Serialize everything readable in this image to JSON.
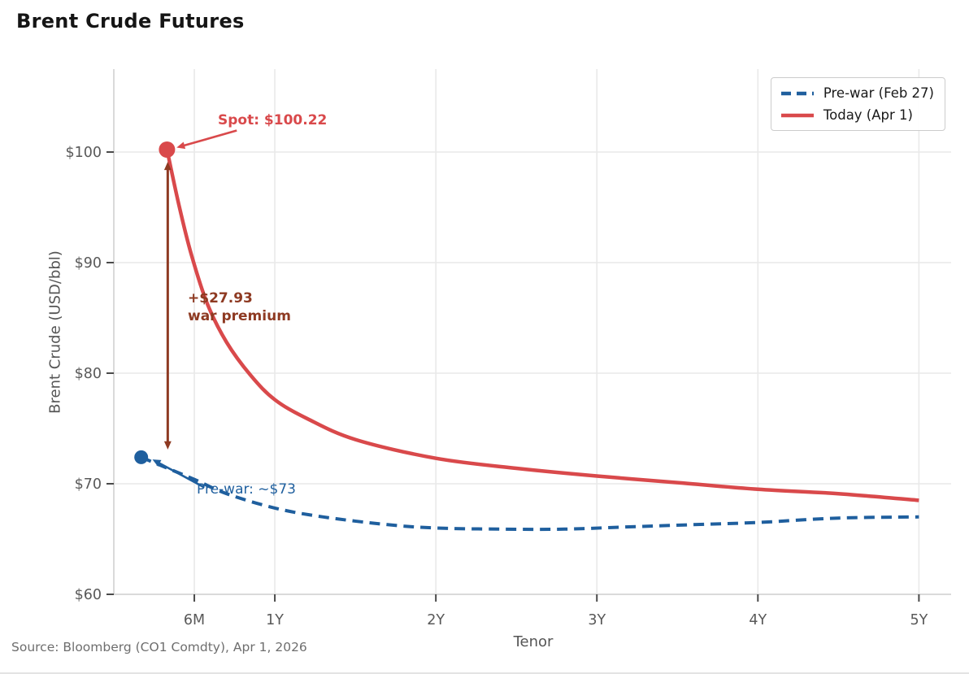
{
  "title": "Brent Crude Futures",
  "source_note": "Source: Bloomberg (CO1 Comdty), Apr 1, 2026",
  "chart_data": {
    "type": "line",
    "title": "Brent Crude Futures",
    "xlabel": "Tenor",
    "ylabel": "Brent Crude (USD/bbl)",
    "xlim": [
      0,
      5.2
    ],
    "ylim": [
      60,
      107.5
    ],
    "grid": true,
    "legend_position": "upper right",
    "x_ticks": [
      {
        "t": 0.5,
        "label": "6M"
      },
      {
        "t": 1.0,
        "label": "1Y"
      },
      {
        "t": 2.0,
        "label": "2Y"
      },
      {
        "t": 3.0,
        "label": "3Y"
      },
      {
        "t": 4.0,
        "label": "4Y"
      },
      {
        "t": 5.0,
        "label": "5Y"
      }
    ],
    "y_ticks": [
      {
        "v": 100,
        "label": "$100"
      },
      {
        "v": 90,
        "label": "$90"
      },
      {
        "v": 80,
        "label": "$80"
      },
      {
        "v": 70,
        "label": "$70"
      },
      {
        "v": 60,
        "label": "$60"
      }
    ],
    "series": [
      {
        "name": "Pre-war (Feb 27)",
        "color": "#1f5f9e",
        "style": "dashed",
        "dash": [
          13,
          8
        ],
        "width": 4,
        "start_marker": true,
        "marker_size": 8.5,
        "points": [
          [
            0.17,
            72.4
          ],
          [
            0.35,
            71.3
          ],
          [
            0.5,
            70.4
          ],
          [
            0.7,
            69.1
          ],
          [
            1.0,
            67.8
          ],
          [
            1.3,
            67.0
          ],
          [
            1.7,
            66.3
          ],
          [
            2.0,
            66.0
          ],
          [
            2.4,
            65.9
          ],
          [
            2.8,
            65.9
          ],
          [
            3.2,
            66.1
          ],
          [
            3.6,
            66.3
          ],
          [
            4.0,
            66.5
          ],
          [
            4.5,
            66.9
          ],
          [
            5.0,
            67.0
          ]
        ]
      },
      {
        "name": "Today (Apr 1)",
        "color": "#d9494b",
        "style": "solid",
        "width": 4.5,
        "start_marker": true,
        "marker_size": 10,
        "points": [
          [
            0.33,
            100.22
          ],
          [
            0.4,
            95.5
          ],
          [
            0.48,
            90.8
          ],
          [
            0.58,
            86.3
          ],
          [
            0.7,
            82.8
          ],
          [
            0.85,
            79.8
          ],
          [
            1.0,
            77.6
          ],
          [
            1.2,
            75.9
          ],
          [
            1.5,
            74.0
          ],
          [
            2.0,
            72.3
          ],
          [
            2.5,
            71.4
          ],
          [
            3.0,
            70.7
          ],
          [
            3.5,
            70.1
          ],
          [
            4.0,
            69.5
          ],
          [
            4.5,
            69.1
          ],
          [
            5.0,
            68.5
          ]
        ]
      }
    ],
    "annotations": [
      {
        "id": "spot",
        "text": "Spot: $100.22",
        "color": "#d9494b",
        "points_to": {
          "x": 0.39,
          "y": 100.4
        }
      },
      {
        "id": "war-premium",
        "lines": [
          "+$27.93",
          "war premium"
        ],
        "color": "#8e3a22",
        "at_x": 0.335,
        "from_y": 100.22,
        "to_y": 72.29
      },
      {
        "id": "prewar",
        "text": "Pre-war: ~$73",
        "color": "#1f5f9e",
        "points_to": {
          "x": 0.24,
          "y": 72.2
        }
      }
    ]
  }
}
